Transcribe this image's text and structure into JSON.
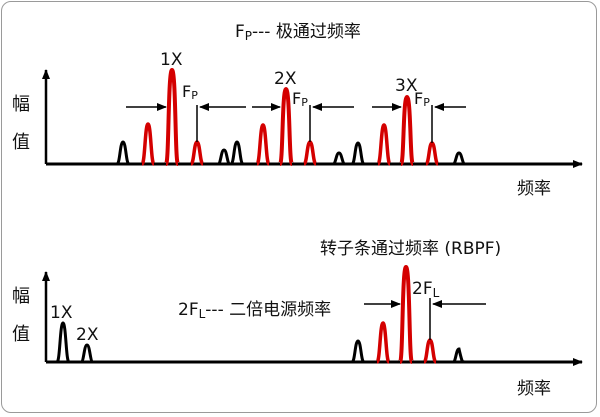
{
  "top_panel": {
    "legend_prefix": "F",
    "legend_sub": "P",
    "legend_suffix": "--- 极通过频率",
    "y_axis_label_1": "幅",
    "y_axis_label_2": "值",
    "x_axis_label": "频率",
    "harmonics": [
      "1X",
      "2X",
      "3X"
    ],
    "fp_main": "F",
    "fp_sub": "P"
  },
  "bottom_panel": {
    "rbpf_label": "转子条通过频率 (RBPF)",
    "fl_prefix": "2F",
    "fl_sub": "L",
    "fl_suffix": "--- 二倍电源频率",
    "sideband_prefix": "2F",
    "sideband_sub": "L",
    "harmonics": [
      "1X",
      "2X"
    ],
    "y_axis_label_1": "幅",
    "y_axis_label_2": "值",
    "x_axis_label": "频率"
  },
  "colors": {
    "axis": "#000000",
    "harmonic_peak": "#d40000",
    "background_peak": "#000000",
    "frame": "#9a9a9a"
  }
}
